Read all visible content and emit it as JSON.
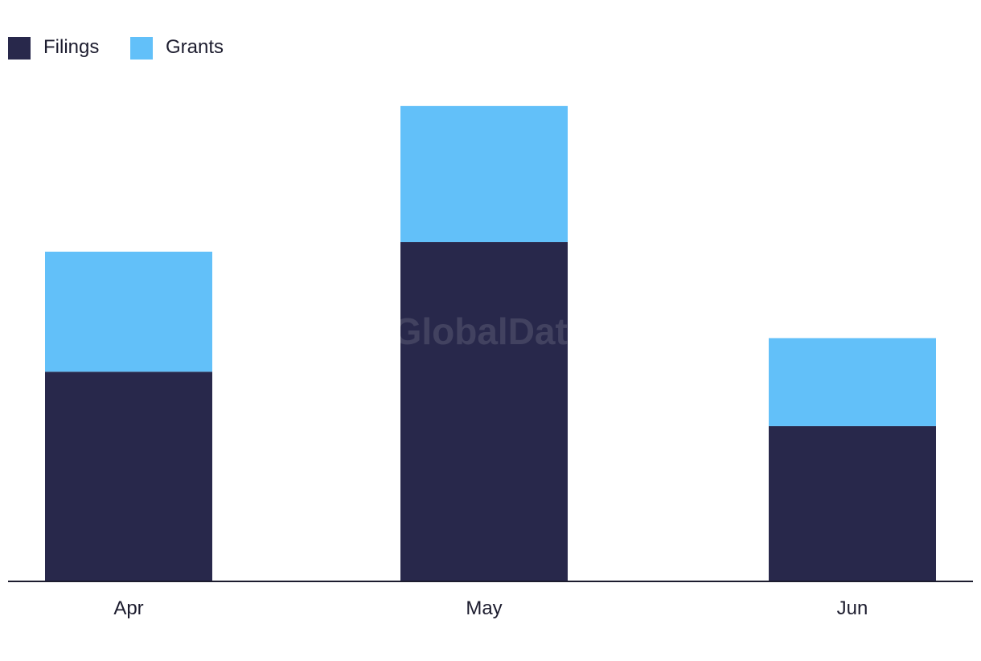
{
  "watermark": "GlobalData",
  "chart_data": {
    "type": "bar",
    "stacked": true,
    "categories": [
      "Apr",
      "May",
      "Jun"
    ],
    "series": [
      {
        "name": "Filings",
        "color": "#28284b",
        "values": [
          13.1,
          21.2,
          9.7
        ]
      },
      {
        "name": "Grants",
        "color": "#62c0f9",
        "values": [
          7.5,
          8.5,
          5.5
        ]
      }
    ],
    "title": "",
    "xlabel": "",
    "ylabel": "",
    "ylim": [
      0,
      31.3
    ],
    "grid": false,
    "legend": "top-left",
    "y_axis_visible": false
  }
}
